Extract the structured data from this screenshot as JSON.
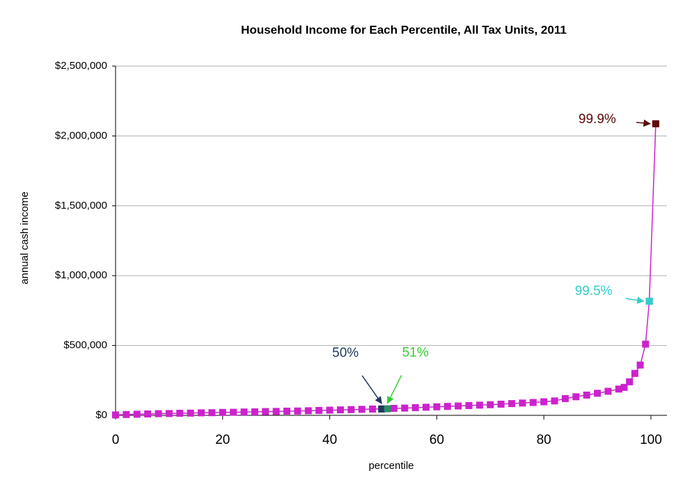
{
  "chart_data": {
    "type": "line",
    "title": "Household Income for Each Percentile, All Tax Units, 2011",
    "x_label": "percentile",
    "y_label": "annual cash income",
    "color": "#cc22cc",
    "x": [
      0,
      2,
      4,
      6,
      8,
      10,
      12,
      14,
      16,
      18,
      20,
      22,
      24,
      26,
      28,
      30,
      32,
      34,
      36,
      38,
      40,
      42,
      44,
      46,
      48,
      50,
      52,
      54,
      56,
      58,
      60,
      62,
      64,
      66,
      68,
      70,
      72,
      74,
      76,
      78,
      80,
      82,
      84,
      86,
      88,
      90,
      92,
      94,
      95,
      96,
      97,
      98,
      99,
      99.7,
      100.9
    ],
    "values": [
      3000,
      6000,
      8000,
      10000,
      12000,
      13000,
      15000,
      16000,
      18000,
      19000,
      21000,
      22000,
      24000,
      25000,
      27000,
      28000,
      30000,
      31000,
      33000,
      35000,
      37000,
      39000,
      41000,
      43000,
      45000,
      47000,
      50000,
      52000,
      55000,
      58000,
      61000,
      64000,
      67000,
      70000,
      73000,
      76000,
      80000,
      84000,
      88000,
      92000,
      97000,
      103000,
      120000,
      133000,
      145000,
      158000,
      172000,
      188000,
      200000,
      240000,
      300000,
      360000,
      510000,
      817000,
      2087000
    ],
    "highlights": [
      {
        "label": "50%",
        "x": 49.7,
        "value": 45000,
        "color": "#1f3a5a",
        "label_color": "#1f3a5a"
      },
      {
        "label": "51%",
        "x": 50.8,
        "value": 47000,
        "color": "#2e8b6a",
        "label_color": "#33cc33"
      },
      {
        "label": "99.5%",
        "x": 99.7,
        "value": 817000,
        "color": "#33cccc",
        "label_color": "#33cccc"
      },
      {
        "label": "99.9%",
        "x": 100.9,
        "value": 2087000,
        "color": "#5c0a0a",
        "label_color": "#5c0a0a"
      }
    ],
    "xlim": [
      0,
      103
    ],
    "xticks": [
      0,
      20,
      40,
      60,
      80,
      100
    ],
    "ylim": [
      0,
      2500000
    ],
    "yticks": [
      {
        "value": 0,
        "label": "$0"
      },
      {
        "value": 500000,
        "label": "$500,000"
      },
      {
        "value": 1000000,
        "label": "$1,000,000"
      },
      {
        "value": 1500000,
        "label": "$1,500,000"
      },
      {
        "value": 2000000,
        "label": "$2,000,000"
      },
      {
        "value": 2500000,
        "label": "$2,500,000"
      }
    ],
    "grid": true
  }
}
